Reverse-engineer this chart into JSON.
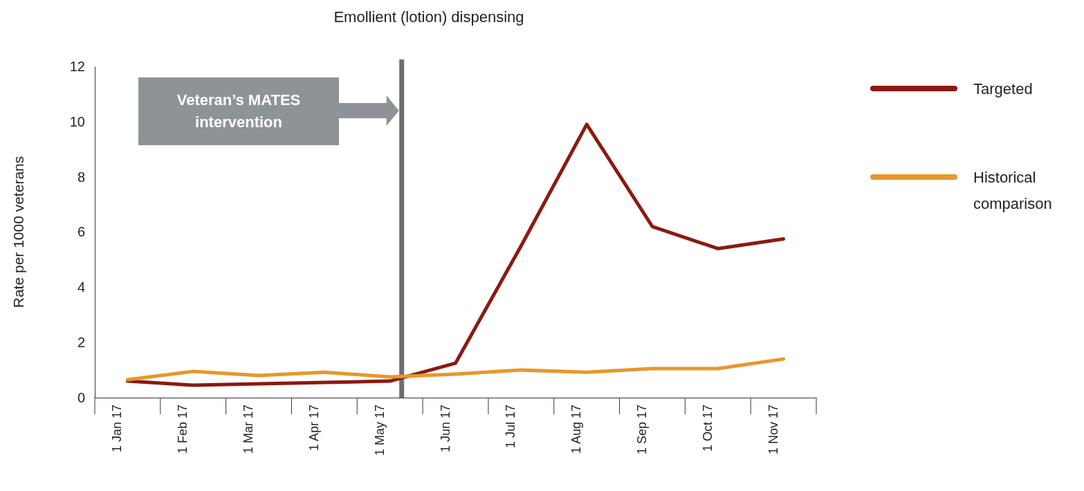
{
  "chart_data": {
    "type": "line",
    "title": "Emollient (lotion) dispensing",
    "ylabel": "Rate per 1000 veterans",
    "categories": [
      "1 Jan 17",
      "1 Feb 17",
      "1 Mar 17",
      "1 Apr 17",
      "1 May 17",
      "1 Jun 17",
      "1 Jul 17",
      "1 Aug 17",
      "1 Sep 17",
      "1 Oct 17",
      "1 Nov 17"
    ],
    "series": [
      {
        "name": "Targeted",
        "color": "#8b1a10",
        "values": [
          0.6,
          0.45,
          0.5,
          0.55,
          0.6,
          1.25,
          5.5,
          9.9,
          6.2,
          5.4,
          5.75
        ]
      },
      {
        "name": "Historical comparison",
        "color": "#e8972a",
        "values": [
          0.65,
          0.95,
          0.8,
          0.92,
          0.75,
          0.85,
          1.0,
          0.92,
          1.05,
          1.05,
          1.4
        ]
      }
    ],
    "ylim": [
      0,
      12
    ],
    "yticks": [
      0,
      2,
      4,
      6,
      8,
      10,
      12
    ],
    "grid": false,
    "legend": "right",
    "marker": "none",
    "line_style": "solid",
    "annotations": [
      "Veteran’s MATES intervention"
    ],
    "ref_lines": [
      {
        "axis": "x",
        "value": "1 May 17",
        "color": "#6d6e70"
      }
    ]
  }
}
